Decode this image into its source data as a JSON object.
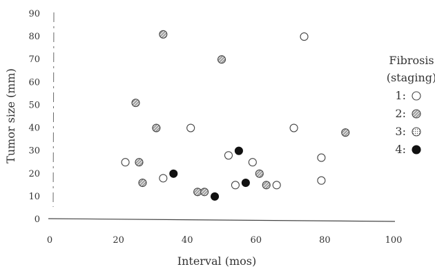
{
  "chart_data": {
    "type": "scatter",
    "title": "",
    "xlabel": "Interval (mos)",
    "ylabel": "Tumor size (mm)",
    "xlim": [
      0,
      100
    ],
    "ylim": [
      0,
      90
    ],
    "x_ticks": [
      "0",
      "20",
      "40",
      "60",
      "80",
      "100"
    ],
    "y_ticks": [
      "0",
      "10",
      "20",
      "30",
      "40",
      "50",
      "60",
      "70",
      "80",
      "90"
    ],
    "grid": false,
    "legend": {
      "title_line1": "Fibrosis",
      "title_line2": "(staging)",
      "placement": "right"
    },
    "series": [
      {
        "name": "1:",
        "marker": "open-circle",
        "points": [
          [
            22,
            25
          ],
          [
            33,
            18
          ],
          [
            41,
            40
          ],
          [
            52,
            28
          ],
          [
            54,
            15
          ],
          [
            59,
            25
          ],
          [
            66,
            15
          ],
          [
            71,
            40
          ],
          [
            74,
            80
          ],
          [
            79,
            27
          ],
          [
            79,
            17
          ]
        ]
      },
      {
        "name": "2:",
        "marker": "hatched-circle",
        "points": [
          [
            25,
            51
          ],
          [
            26,
            25
          ],
          [
            27,
            16
          ],
          [
            31,
            40
          ],
          [
            33,
            81
          ],
          [
            43,
            12
          ],
          [
            45,
            12
          ],
          [
            50,
            70
          ],
          [
            61,
            20
          ],
          [
            63,
            15
          ],
          [
            86,
            38
          ]
        ]
      },
      {
        "name": "3:",
        "marker": "dotted-circle",
        "points": []
      },
      {
        "name": "4:",
        "marker": "filled-circle",
        "points": [
          [
            36,
            20
          ],
          [
            48,
            10
          ],
          [
            55,
            30
          ],
          [
            57,
            16
          ]
        ]
      }
    ]
  }
}
